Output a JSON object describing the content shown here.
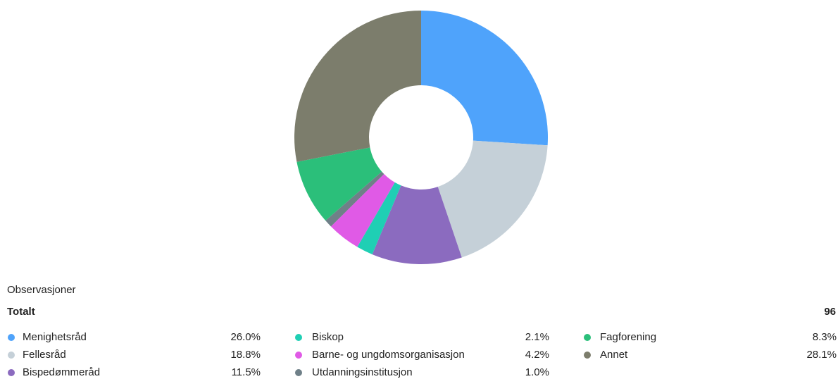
{
  "chart_data": {
    "type": "donut",
    "categories": [
      "Menighetsråd",
      "Fellesråd",
      "Bispedømmeråd",
      "Biskop",
      "Barne- og ungdomsorganisasjon",
      "Utdanningsinstitusjon",
      "Fagforening",
      "Annet"
    ],
    "values": [
      26.0,
      18.8,
      11.5,
      2.1,
      4.2,
      1.0,
      8.3,
      28.1
    ],
    "value_labels": [
      "26.0%",
      "18.8%",
      "11.5%",
      "2.1%",
      "4.2%",
      "1.0%",
      "8.3%",
      "28.1%"
    ],
    "colors": [
      "#4fa3fb",
      "#c5d0d8",
      "#8b6bbf",
      "#1fcfb4",
      "#e05ae6",
      "#6f8088",
      "#2bbf7a",
      "#7c7d6c"
    ],
    "observations_label": "Observasjoner",
    "total_label": "Totalt",
    "total": 96
  }
}
